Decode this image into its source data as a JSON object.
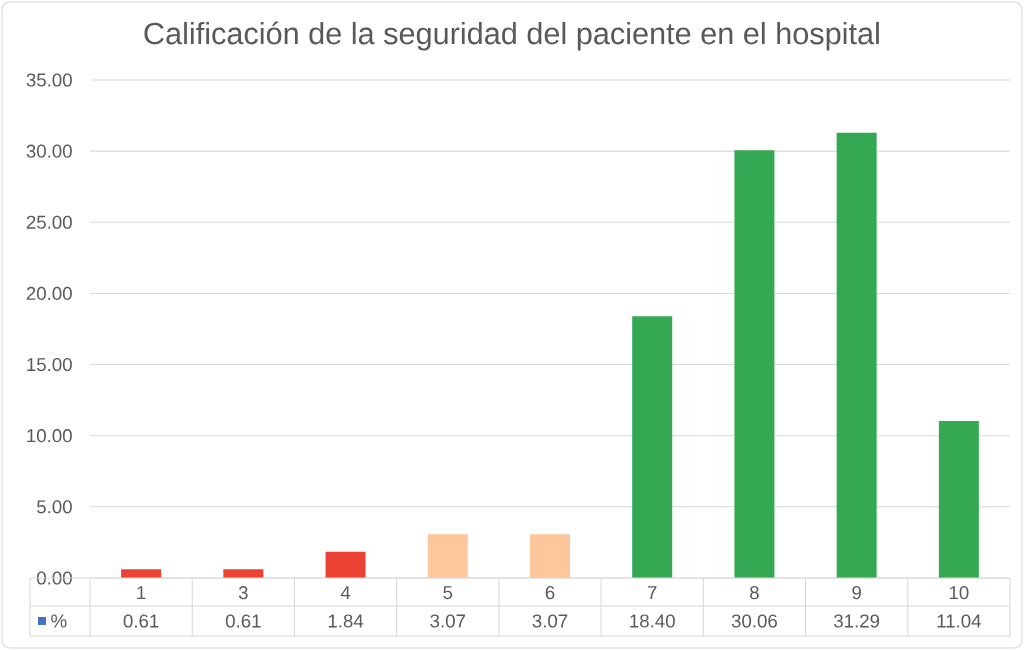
{
  "chart_data": {
    "type": "bar",
    "title": "Calificación de la seguridad del paciente en el hospital",
    "categories": [
      "1",
      "3",
      "4",
      "5",
      "6",
      "7",
      "8",
      "9",
      "10"
    ],
    "series": [
      {
        "name": "%",
        "color": "#4472c4",
        "values": [
          0.61,
          0.61,
          1.84,
          3.07,
          3.07,
          18.4,
          30.06,
          31.29,
          11.04
        ],
        "colors": [
          "#ea4335",
          "#ea4335",
          "#ea4335",
          "#fdc69b",
          "#fdc69b",
          "#34a853",
          "#34a853",
          "#34a853",
          "#34a853"
        ],
        "value_labels": [
          "0.61",
          "0.61",
          "1.84",
          "3.07",
          "3.07",
          "18.40",
          "30.06",
          "31.29",
          "11.04"
        ]
      }
    ],
    "ylim": [
      0,
      35
    ],
    "yticks": [
      {
        "value": 0,
        "label": "0.00"
      },
      {
        "value": 5,
        "label": "5.00"
      },
      {
        "value": 10,
        "label": "10.00"
      },
      {
        "value": 15,
        "label": "15.00"
      },
      {
        "value": 20,
        "label": "20.00"
      },
      {
        "value": 25,
        "label": "25.00"
      },
      {
        "value": 30,
        "label": "30.00"
      },
      {
        "value": 35,
        "label": "35.00"
      }
    ],
    "grid": "y",
    "legend": "bottom left"
  }
}
